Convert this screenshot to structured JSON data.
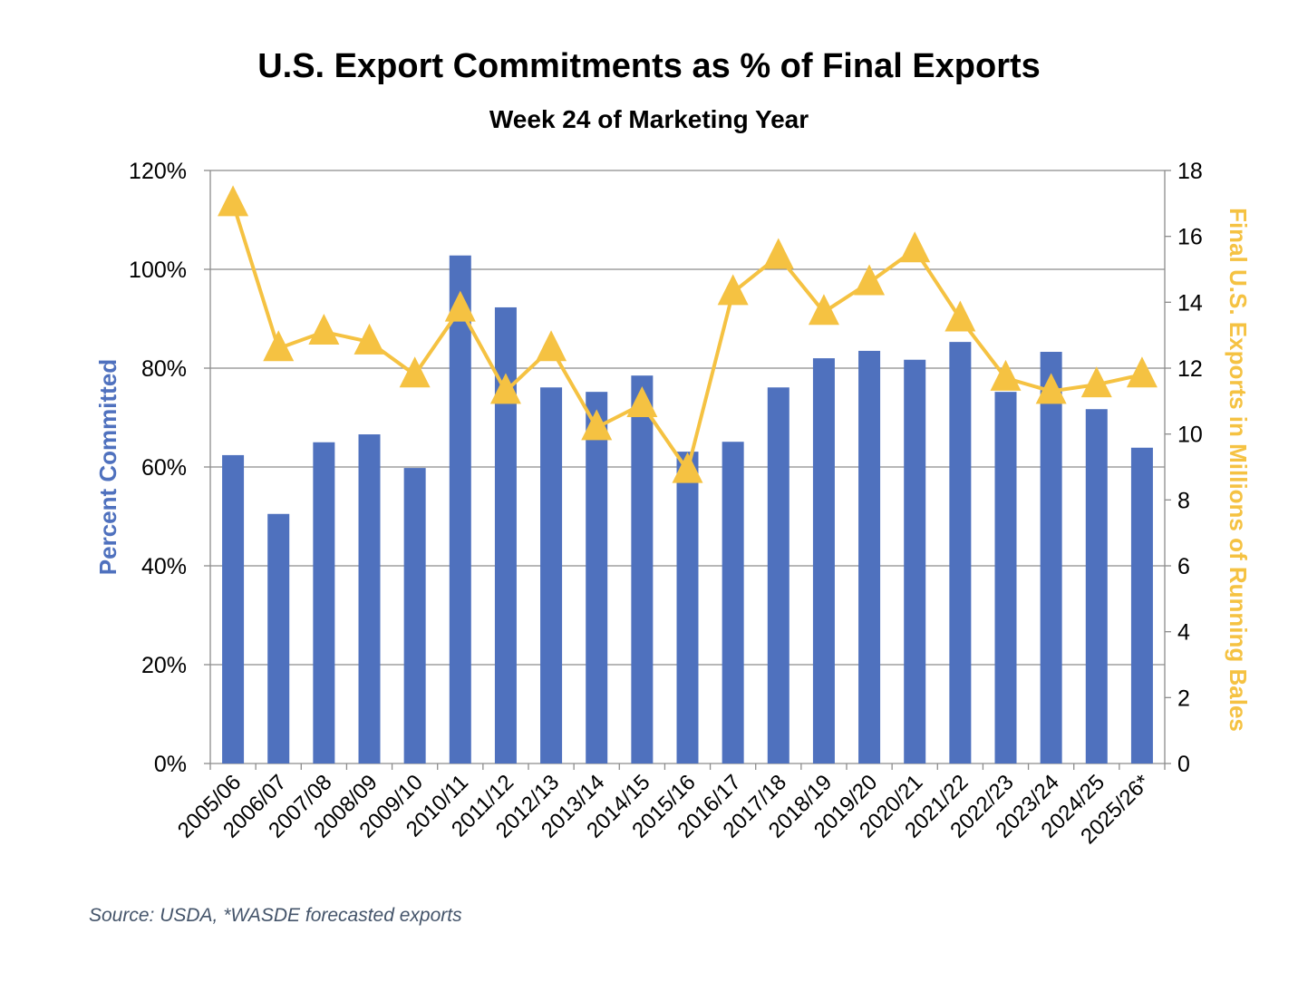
{
  "chart_data": {
    "type": "bar+line",
    "title": "U.S. Export Commitments as % of Final Exports",
    "subtitle": "Week 24 of Marketing Year",
    "source": "Source: USDA, *WASDE forecasted exports",
    "categories": [
      "2005/06",
      "2006/07",
      "2007/08",
      "2008/09",
      "2009/10",
      "2010/11",
      "2011/12",
      "2012/13",
      "2013/14",
      "2014/15",
      "2015/16",
      "2016/17",
      "2017/18",
      "2018/19",
      "2019/20",
      "2020/21",
      "2021/22",
      "2022/23",
      "2023/24",
      "2024/25",
      "2025/26*"
    ],
    "series": [
      {
        "type": "bar",
        "axis": "left",
        "color": "#4f71be",
        "values": [
          62.4,
          50.5,
          65.0,
          66.6,
          59.8,
          102.8,
          92.3,
          76.1,
          75.2,
          78.5,
          63.1,
          65.1,
          76.1,
          82.0,
          83.5,
          81.7,
          85.3,
          75.2,
          83.3,
          71.7,
          63.9
        ]
      },
      {
        "type": "line",
        "axis": "right",
        "color": "#f5c242",
        "marker": "triangle",
        "values": [
          17.0,
          12.6,
          13.1,
          12.8,
          11.8,
          13.8,
          11.3,
          12.6,
          10.2,
          10.9,
          8.9,
          14.3,
          15.4,
          13.7,
          14.6,
          15.6,
          13.5,
          11.7,
          11.3,
          11.5,
          11.8
        ]
      }
    ],
    "y_left": {
      "label": "Percent Committed",
      "range": [
        0,
        120
      ],
      "ticks": [
        "0%",
        "20%",
        "40%",
        "60%",
        "80%",
        "100%",
        "120%"
      ],
      "color": "#4f71be"
    },
    "y_right": {
      "label": "Final U.S. Exports in Millions of Running Bales",
      "range": [
        0,
        18
      ],
      "ticks": [
        "0",
        "2",
        "4",
        "6",
        "8",
        "10",
        "12",
        "14",
        "16",
        "18"
      ],
      "color": "#f5c242"
    },
    "grid": true,
    "legend": "none"
  }
}
